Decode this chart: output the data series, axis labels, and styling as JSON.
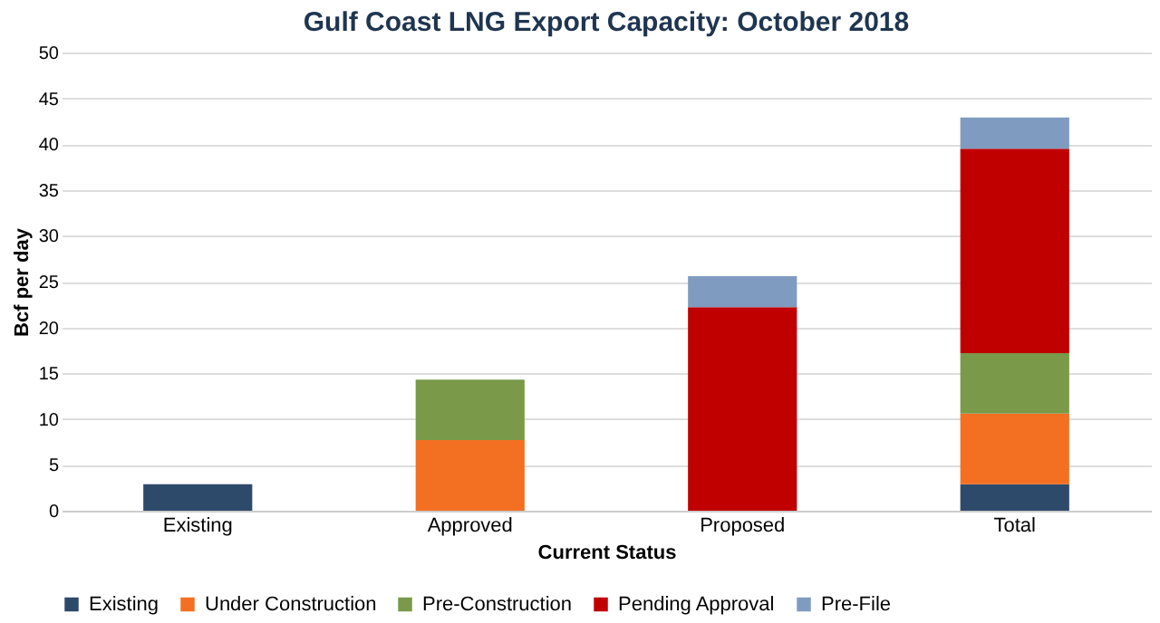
{
  "chart_data": {
    "type": "bar",
    "title": "Gulf Coast LNG Export Capacity: October 2018",
    "xlabel": "Current Status",
    "ylabel": "Bcf per day",
    "categories": [
      "Existing",
      "Approved",
      "Proposed",
      "Total"
    ],
    "stacked": true,
    "series": [
      {
        "name": "Existing",
        "color": "#2e4a6b",
        "values": [
          2.9,
          null,
          null,
          2.9
        ]
      },
      {
        "name": "Under Construction",
        "color": "#f36f21",
        "values": [
          null,
          7.7,
          null,
          7.7
        ]
      },
      {
        "name": "Pre-Construction",
        "color": "#7a9a4a",
        "values": [
          null,
          6.6,
          null,
          6.6
        ]
      },
      {
        "name": "Pending Approval",
        "color": "#c00000",
        "values": [
          null,
          null,
          22.2,
          22.3
        ]
      },
      {
        "name": "Pre-File",
        "color": "#7f9cc0",
        "values": [
          null,
          null,
          3.4,
          3.4
        ]
      }
    ],
    "ylim": [
      0,
      50
    ],
    "yticks": [
      0,
      5,
      10,
      15,
      20,
      25,
      30,
      35,
      40,
      45,
      50
    ],
    "grid": "y",
    "legend": "bottom"
  }
}
